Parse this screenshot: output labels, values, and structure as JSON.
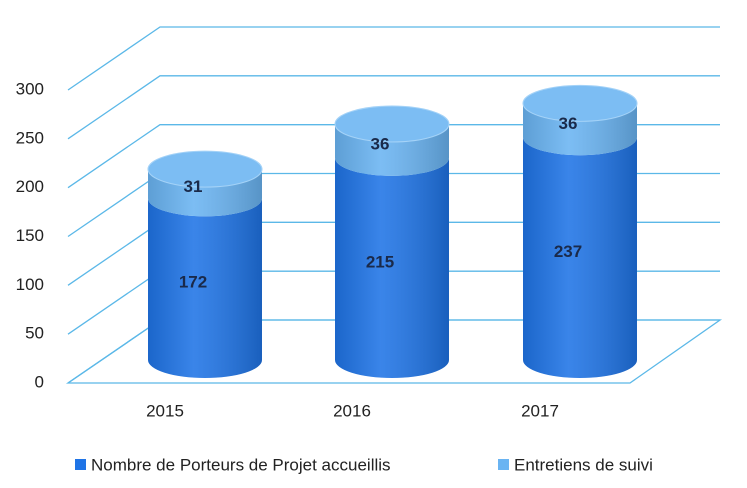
{
  "chart_data": {
    "type": "bar3d-stacked",
    "categories": [
      "2015",
      "2016",
      "2017"
    ],
    "series": [
      {
        "name": "Nombre de Porteurs de Projet accueillis",
        "color": "#1f74e6",
        "values": [
          172,
          215,
          237
        ]
      },
      {
        "name": "Entretiens de suivi",
        "color": "#6ab4f2",
        "values": [
          31,
          36,
          36
        ]
      }
    ],
    "ylim": [
      0,
      300
    ],
    "yticks": [
      0,
      50,
      100,
      150,
      200,
      250,
      300
    ],
    "grid": true,
    "legend": "bottom"
  }
}
